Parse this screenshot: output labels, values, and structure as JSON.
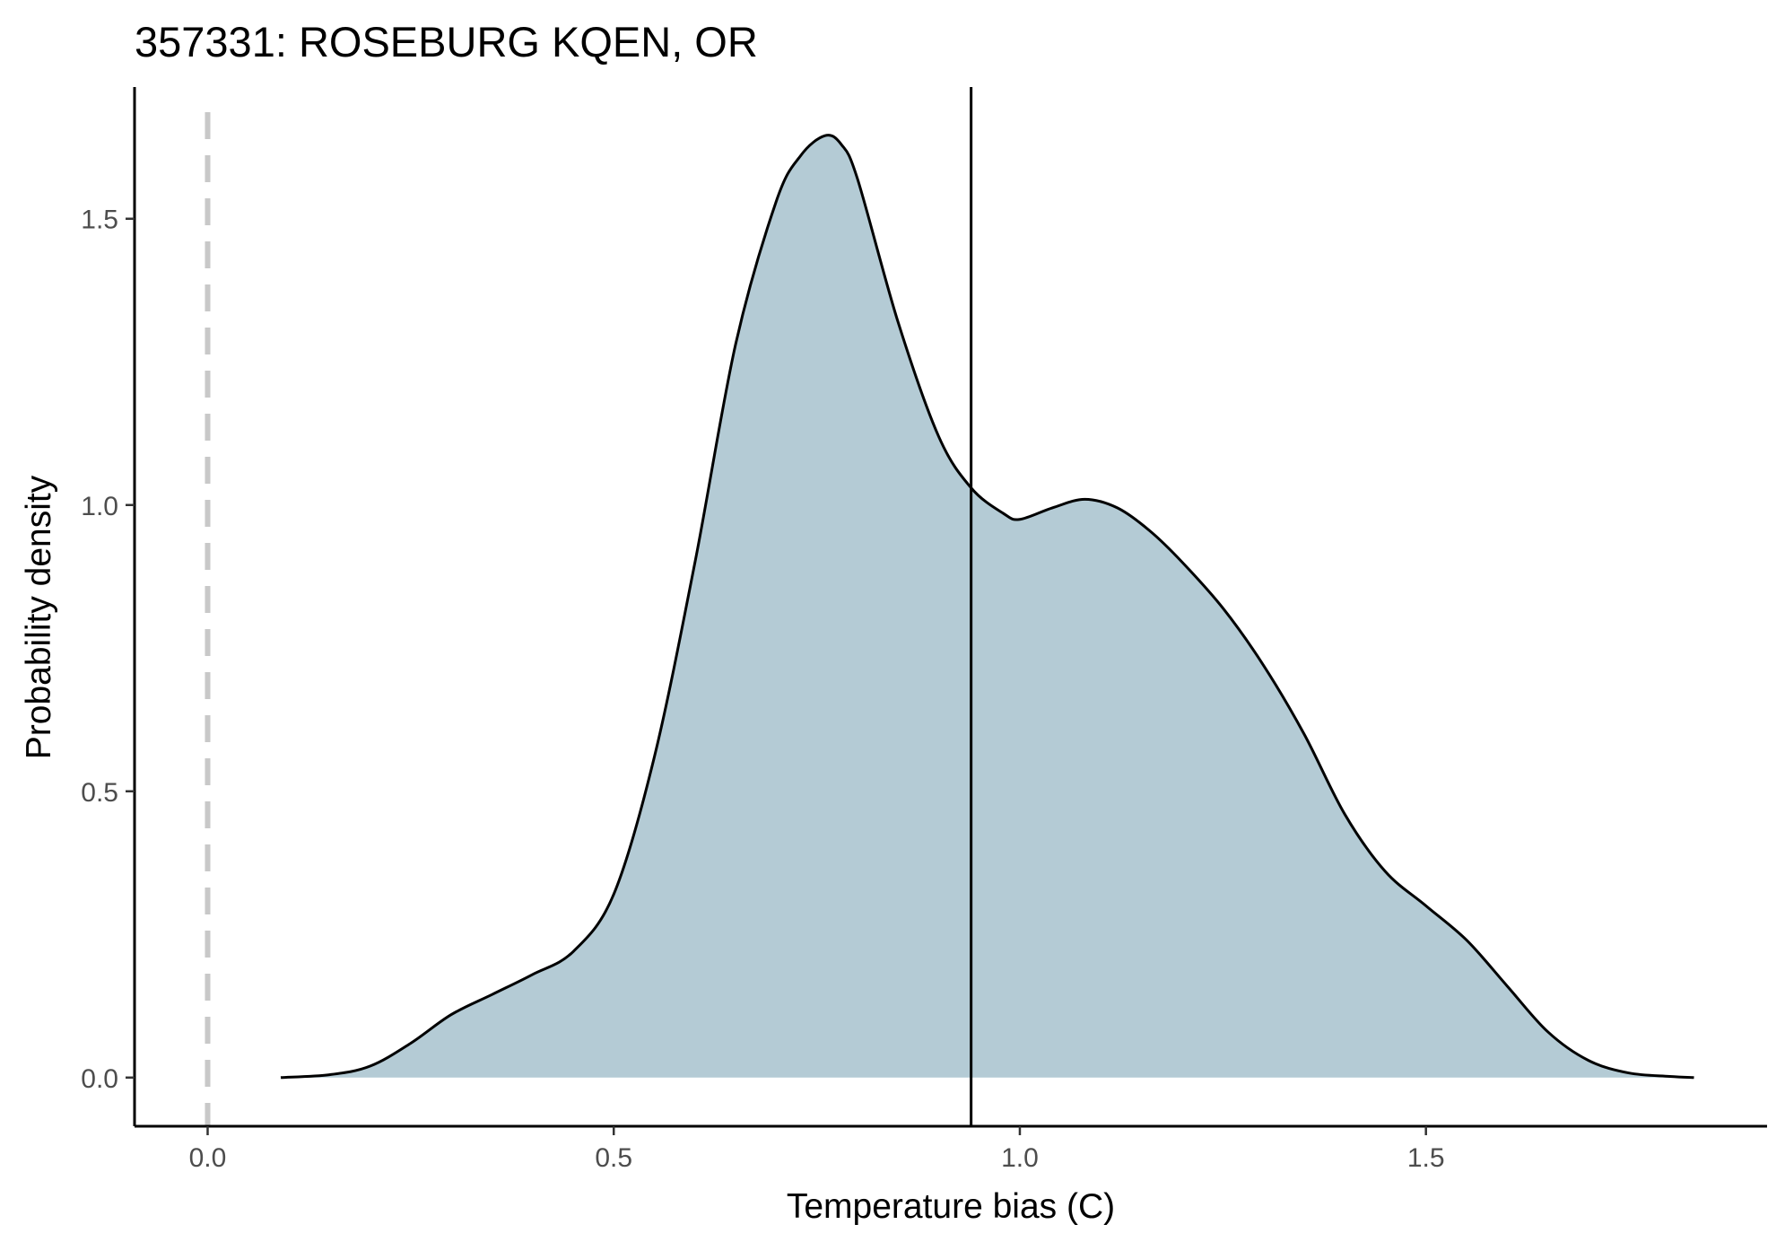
{
  "chart_data": {
    "type": "area",
    "title": "357331: ROSEBURG KQEN, OR",
    "xlabel": "Temperature bias (C)",
    "ylabel": "Probability density",
    "xlim": [
      -0.09,
      1.92
    ],
    "ylim": [
      -0.085,
      1.73
    ],
    "x_ticks": [
      0.0,
      0.5,
      1.0,
      1.5
    ],
    "x_tick_labels": [
      "0.0",
      "0.5",
      "1.0",
      "1.5"
    ],
    "y_ticks": [
      0.0,
      0.5,
      1.0,
      1.5
    ],
    "y_tick_labels": [
      "0.0",
      "0.5",
      "1.0",
      "1.5"
    ],
    "grid": false,
    "legend": "none",
    "reference_lines": [
      {
        "orientation": "vertical",
        "x": 0.0,
        "style": "dashed",
        "color": "#c8c8c8"
      },
      {
        "orientation": "vertical",
        "x": 0.94,
        "style": "solid",
        "color": "#000000"
      }
    ],
    "series": [
      {
        "fill_color": "#b4cbd5",
        "line_color": "#000000",
        "x": [
          0.09,
          0.15,
          0.2,
          0.25,
          0.3,
          0.35,
          0.4,
          0.45,
          0.5,
          0.55,
          0.6,
          0.65,
          0.7,
          0.73,
          0.76,
          0.78,
          0.8,
          0.85,
          0.9,
          0.94,
          0.98,
          1.0,
          1.04,
          1.08,
          1.12,
          1.16,
          1.2,
          1.25,
          1.3,
          1.35,
          1.4,
          1.45,
          1.5,
          1.55,
          1.6,
          1.65,
          1.7,
          1.75,
          1.8,
          1.83
        ],
        "y": [
          0.0,
          0.005,
          0.02,
          0.06,
          0.11,
          0.145,
          0.18,
          0.22,
          0.32,
          0.56,
          0.9,
          1.28,
          1.53,
          1.61,
          1.645,
          1.63,
          1.57,
          1.32,
          1.12,
          1.03,
          0.985,
          0.975,
          0.995,
          1.01,
          0.995,
          0.955,
          0.9,
          0.82,
          0.72,
          0.6,
          0.46,
          0.36,
          0.3,
          0.24,
          0.16,
          0.08,
          0.03,
          0.008,
          0.002,
          0.0
        ]
      }
    ]
  }
}
